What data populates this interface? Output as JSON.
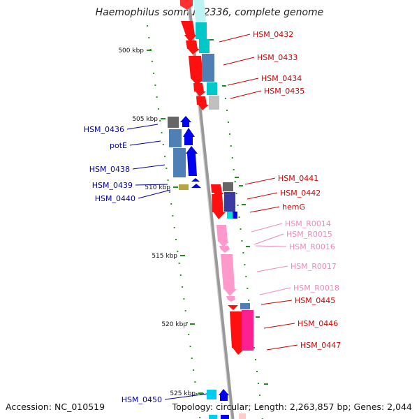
{
  "title": "Haemophilus somnus 2336, complete genome",
  "footer": {
    "accession": "Accession: NC_010519",
    "summary": "Topology: circular; Length: 2,263,857 bp; Genes: 2,044"
  },
  "colors": {
    "red_gene": "#ff0000",
    "blue_gene": "#0000ee",
    "pink_gene": "#ff99cc",
    "magenta_gene": "#ff2090",
    "cyan_gene": "#00cccc",
    "steel_gene": "#4682b4",
    "grey_gene": "#777777",
    "backbone": "#999999",
    "tick": "#228b22",
    "red_label": "#cc0000",
    "blue_label": "#000099",
    "pink_label": "#ee88bb"
  },
  "scale": {
    "ticks": [
      {
        "label": "500 kbp"
      },
      {
        "label": "505 kbp"
      },
      {
        "label": "510 kbp"
      },
      {
        "label": "515 kbp"
      },
      {
        "label": "520 kbp"
      },
      {
        "label": "525 kbp"
      }
    ]
  },
  "gene_labels": {
    "right": [
      {
        "name": "HSM_0432"
      },
      {
        "name": "HSM_0433"
      },
      {
        "name": "HSM_0434"
      },
      {
        "name": "HSM_0435"
      },
      {
        "name": "HSM_0441"
      },
      {
        "name": "HSM_0442"
      },
      {
        "name": "hemG"
      },
      {
        "name": "HSM_R0014"
      },
      {
        "name": "HSM_R0015"
      },
      {
        "name": "HSM_R0016"
      },
      {
        "name": "HSM_R0017"
      },
      {
        "name": "HSM_R0018"
      },
      {
        "name": "HSM_0445"
      },
      {
        "name": "HSM_0446"
      },
      {
        "name": "HSM_0447"
      }
    ],
    "left": [
      {
        "name": "HSM_0436"
      },
      {
        "name": "potE"
      },
      {
        "name": "HSM_0438"
      },
      {
        "name": "HSM_0439"
      },
      {
        "name": "HSM_0440"
      },
      {
        "name": "HSM_0450"
      }
    ]
  }
}
